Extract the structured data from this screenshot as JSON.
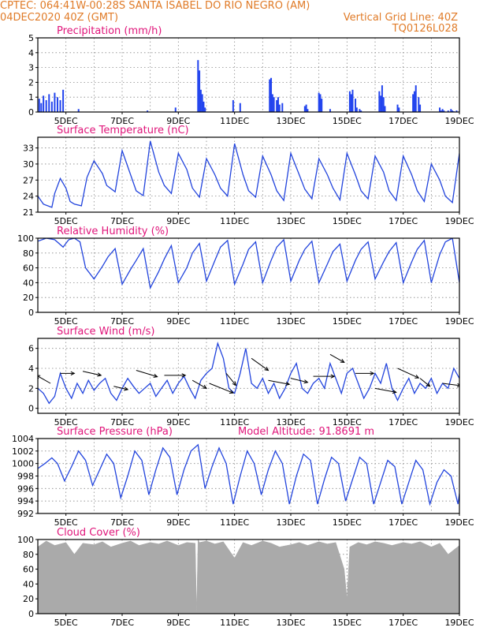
{
  "header": {
    "line1_left": "CPTEC:   064:41W-00:28S   SANTA ISABEL DO RIO NEGRO (AM)",
    "line2_left": "04DEC2020 40Z (GMT)",
    "line2_right": "Vertical Grid Line: 40Z",
    "line3_right": "TQ0126L028"
  },
  "colors": {
    "header": "#e07b28",
    "title": "#e0157a",
    "series": "#2244dd",
    "bars": "#2244ee",
    "cloud": "#aaaaaa",
    "grid": "#888888"
  },
  "chart_data": [
    {
      "type": "bar",
      "title": "Precipitation (mm/h)",
      "x_ticks": [
        "5DEC",
        "7DEC",
        "9DEC",
        "11DEC",
        "13DEC",
        "15DEC",
        "17DEC",
        "19DEC"
      ],
      "xlim": [
        0,
        15
      ],
      "ylim": [
        0,
        5
      ],
      "y_ticks": [
        "0",
        "1",
        "2",
        "3",
        "4",
        "5"
      ],
      "grid": true,
      "x": [
        0.05,
        0.12,
        0.2,
        0.3,
        0.4,
        0.5,
        0.6,
        0.7,
        0.8,
        0.9,
        1.45,
        3.9,
        4.9,
        5.7,
        5.75,
        5.8,
        5.85,
        5.9,
        5.95,
        6.95,
        7.2,
        8.25,
        8.3,
        8.35,
        8.4,
        8.5,
        8.55,
        8.6,
        8.7,
        9.5,
        9.55,
        9.6,
        10.0,
        10.05,
        10.1,
        10.4,
        11.1,
        11.15,
        11.2,
        11.3,
        11.35,
        11.45,
        11.5,
        12.15,
        12.2,
        12.25,
        12.3,
        12.35,
        12.8,
        12.85,
        13.35,
        13.4,
        13.45,
        13.55,
        13.6,
        14.3,
        14.35,
        14.4,
        14.45,
        14.6,
        14.7,
        14.75,
        14.8,
        14.9
      ],
      "values": [
        0.9,
        0.6,
        1.1,
        0.8,
        1.2,
        0.7,
        1.3,
        1.0,
        0.8,
        1.5,
        0.2,
        0.1,
        0.3,
        3.5,
        2.8,
        1.5,
        1.2,
        0.7,
        0.3,
        0.8,
        0.6,
        2.2,
        2.3,
        1.2,
        1.0,
        0.8,
        1.0,
        0.5,
        0.6,
        0.4,
        0.5,
        0.2,
        1.3,
        1.2,
        0.9,
        0.2,
        1.4,
        1.2,
        1.5,
        0.9,
        0.3,
        0.2,
        0.1,
        1.4,
        1.1,
        1.8,
        1.0,
        0.4,
        0.5,
        0.3,
        1.2,
        1.4,
        1.8,
        1.0,
        0.5,
        0.3,
        0.1,
        0.2,
        0.1,
        0.1,
        0.2,
        0.1,
        0.05,
        0.1
      ]
    },
    {
      "type": "line",
      "title": "Surface Temperature (nC)",
      "x_ticks": [
        "5DEC",
        "7DEC",
        "9DEC",
        "11DEC",
        "13DEC",
        "15DEC",
        "17DEC",
        "19DEC"
      ],
      "xlim": [
        0,
        15
      ],
      "ylim": [
        21,
        35
      ],
      "y_ticks": [
        "21",
        "24",
        "27",
        "30",
        "33"
      ],
      "grid": true,
      "x": [
        0.0,
        0.2,
        0.5,
        0.6,
        0.8,
        1.0,
        1.15,
        1.3,
        1.55,
        1.75,
        2.0,
        2.3,
        2.45,
        2.75,
        3.0,
        3.3,
        3.5,
        3.75,
        4.0,
        4.3,
        4.5,
        4.75,
        5.0,
        5.3,
        5.5,
        5.75,
        6.0,
        6.3,
        6.5,
        6.75,
        7.0,
        7.3,
        7.5,
        7.75,
        8.0,
        8.3,
        8.5,
        8.75,
        9.0,
        9.3,
        9.5,
        9.75,
        10.0,
        10.3,
        10.5,
        10.75,
        11.0,
        11.3,
        11.5,
        11.75,
        12.0,
        12.3,
        12.5,
        12.75,
        13.0,
        13.3,
        13.5,
        13.75,
        14.0,
        14.3,
        14.5,
        14.75,
        15.0
      ],
      "values": [
        24.0,
        22.5,
        21.9,
        24.5,
        27.3,
        25.5,
        23.0,
        22.5,
        22.2,
        27.5,
        30.6,
        28.2,
        26.0,
        24.8,
        32.5,
        28.0,
        25.0,
        24.1,
        34.3,
        28.5,
        26.0,
        24.5,
        32.0,
        29.0,
        25.5,
        23.8,
        31.0,
        28.0,
        25.5,
        24.0,
        33.8,
        28.0,
        25.0,
        23.8,
        31.5,
        28.0,
        25.0,
        23.2,
        32.0,
        28.0,
        25.3,
        23.5,
        31.0,
        28.0,
        25.5,
        23.3,
        32.0,
        28.0,
        25.0,
        23.5,
        31.5,
        28.5,
        25.0,
        23.2,
        31.5,
        28.0,
        25.0,
        23.0,
        30.0,
        27.0,
        24.0,
        22.8,
        32.0
      ]
    },
    {
      "type": "line",
      "title": "Relative Humidity (%)",
      "x_ticks": [
        "5DEC",
        "7DEC",
        "9DEC",
        "11DEC",
        "13DEC",
        "15DEC",
        "17DEC",
        "19DEC"
      ],
      "xlim": [
        0,
        15
      ],
      "ylim": [
        0,
        100
      ],
      "y_ticks": [
        "0",
        "20",
        "40",
        "60",
        "80",
        "100"
      ],
      "grid": true,
      "x": [
        0.0,
        0.3,
        0.6,
        0.9,
        1.1,
        1.3,
        1.5,
        1.7,
        2.0,
        2.3,
        2.5,
        2.75,
        3.0,
        3.3,
        3.5,
        3.75,
        4.0,
        4.3,
        4.5,
        4.75,
        5.0,
        5.3,
        5.5,
        5.75,
        6.0,
        6.3,
        6.5,
        6.75,
        7.0,
        7.3,
        7.5,
        7.75,
        8.0,
        8.3,
        8.5,
        8.75,
        9.0,
        9.3,
        9.5,
        9.75,
        10.0,
        10.3,
        10.5,
        10.75,
        11.0,
        11.3,
        11.5,
        11.75,
        12.0,
        12.3,
        12.5,
        12.75,
        13.0,
        13.3,
        13.5,
        13.75,
        14.0,
        14.3,
        14.5,
        14.75,
        15.0
      ],
      "values": [
        96,
        100,
        98,
        88,
        98,
        100,
        95,
        60,
        45,
        62,
        75,
        86,
        38,
        58,
        70,
        86,
        33,
        55,
        72,
        90,
        40,
        60,
        80,
        93,
        42,
        70,
        88,
        97,
        38,
        65,
        85,
        95,
        40,
        70,
        88,
        98,
        42,
        70,
        85,
        96,
        40,
        65,
        82,
        92,
        42,
        70,
        85,
        95,
        45,
        68,
        82,
        94,
        40,
        68,
        85,
        97,
        40,
        78,
        95,
        100,
        40
      ]
    },
    {
      "type": "line",
      "title": "Surface Wind (m/s)",
      "x_ticks": [
        "5DEC",
        "7DEC",
        "9DEC",
        "11DEC",
        "13DEC",
        "15DEC",
        "17DEC",
        "19DEC"
      ],
      "xlim": [
        0,
        15
      ],
      "ylim": [
        -0.5,
        7
      ],
      "y_ticks": [
        "0",
        "2",
        "4",
        "6"
      ],
      "grid": true,
      "x": [
        0.0,
        0.2,
        0.4,
        0.6,
        0.8,
        1.0,
        1.2,
        1.4,
        1.6,
        1.8,
        2.0,
        2.2,
        2.4,
        2.6,
        2.8,
        3.0,
        3.2,
        3.4,
        3.6,
        3.8,
        4.0,
        4.2,
        4.4,
        4.6,
        4.8,
        5.0,
        5.2,
        5.4,
        5.6,
        5.8,
        6.0,
        6.2,
        6.4,
        6.6,
        6.8,
        7.0,
        7.2,
        7.4,
        7.6,
        7.8,
        8.0,
        8.2,
        8.4,
        8.6,
        8.8,
        9.0,
        9.2,
        9.4,
        9.6,
        9.8,
        10.0,
        10.2,
        10.4,
        10.6,
        10.8,
        11.0,
        11.2,
        11.4,
        11.6,
        11.8,
        12.0,
        12.2,
        12.4,
        12.6,
        12.8,
        13.0,
        13.2,
        13.4,
        13.6,
        13.8,
        14.0,
        14.2,
        14.4,
        14.6,
        14.8,
        15.0
      ],
      "values": [
        2.0,
        1.5,
        0.5,
        1.2,
        3.5,
        2.0,
        1.0,
        2.5,
        1.5,
        2.8,
        1.8,
        2.5,
        3.0,
        1.5,
        0.8,
        2.0,
        3.0,
        2.2,
        1.5,
        2.0,
        2.5,
        1.2,
        2.0,
        2.8,
        1.5,
        2.5,
        3.2,
        2.0,
        1.0,
        2.8,
        3.5,
        4.0,
        6.5,
        5.0,
        2.0,
        1.5,
        3.5,
        6.0,
        2.5,
        2.0,
        3.0,
        1.5,
        2.5,
        1.0,
        2.0,
        3.5,
        4.5,
        2.0,
        1.5,
        2.5,
        3.0,
        2.0,
        4.5,
        3.0,
        1.5,
        3.5,
        4.0,
        2.5,
        1.0,
        2.0,
        3.5,
        2.5,
        4.5,
        2.0,
        0.8,
        2.0,
        3.0,
        1.5,
        2.5,
        2.0,
        3.0,
        1.5,
        2.5,
        2.0,
        4.0,
        3.0
      ],
      "wind_vectors": [
        [
          0.45,
          2.5,
          -1,
          1
        ],
        [
          0.8,
          3.5,
          1,
          0
        ],
        [
          1.6,
          3.7,
          1.3,
          -0.5
        ],
        [
          2.7,
          2.2,
          1,
          -0.4
        ],
        [
          3.5,
          3.8,
          1.5,
          -0.8
        ],
        [
          4.5,
          3.3,
          1.5,
          0
        ],
        [
          5.5,
          2.8,
          1,
          -1
        ],
        [
          6.1,
          2.5,
          1.7,
          -1.2
        ],
        [
          6.7,
          3.5,
          0.7,
          -1.5
        ],
        [
          7.6,
          5.0,
          1.2,
          -1.5
        ],
        [
          8.2,
          2.8,
          1.5,
          -0.5
        ],
        [
          9.0,
          3.0,
          1.2,
          -0.5
        ],
        [
          9.8,
          3.2,
          1.5,
          0
        ],
        [
          10.4,
          5.4,
          1,
          -1
        ],
        [
          11.3,
          3.5,
          1.3,
          0
        ],
        [
          12.0,
          2.0,
          1.5,
          -0.5
        ],
        [
          12.8,
          4.0,
          1.5,
          -1.2
        ],
        [
          13.6,
          3.0,
          0.7,
          -1
        ],
        [
          14.4,
          2.5,
          1.3,
          -0.3
        ]
      ]
    },
    {
      "type": "line",
      "title": "Surface Pressure (hPa)",
      "subtitle": "Model Altitude: 91.8691 m",
      "x_ticks": [
        "5DEC",
        "7DEC",
        "9DEC",
        "11DEC",
        "13DEC",
        "15DEC",
        "17DEC",
        "19DEC"
      ],
      "xlim": [
        0,
        15
      ],
      "ylim": [
        992,
        1004
      ],
      "y_ticks": [
        "992",
        "994",
        "996",
        "998",
        "1000",
        "1002",
        "1004"
      ],
      "grid": true,
      "x": [
        0.0,
        0.25,
        0.5,
        0.7,
        0.95,
        1.2,
        1.45,
        1.7,
        1.95,
        2.2,
        2.45,
        2.7,
        2.95,
        3.2,
        3.45,
        3.7,
        3.95,
        4.2,
        4.45,
        4.7,
        4.95,
        5.2,
        5.45,
        5.7,
        5.95,
        6.2,
        6.45,
        6.7,
        6.95,
        7.2,
        7.45,
        7.7,
        7.95,
        8.2,
        8.45,
        8.7,
        8.95,
        9.2,
        9.45,
        9.7,
        9.95,
        10.2,
        10.45,
        10.7,
        10.95,
        11.2,
        11.45,
        11.7,
        11.95,
        12.2,
        12.45,
        12.7,
        12.95,
        13.2,
        13.45,
        13.7,
        13.95,
        14.2,
        14.45,
        14.7,
        14.95,
        15.0
      ],
      "values": [
        999.2,
        1000.0,
        1000.9,
        1000.0,
        997.2,
        999.5,
        1002.0,
        1000.5,
        996.5,
        999.0,
        1001.5,
        1000.0,
        994.5,
        998.0,
        1002.0,
        1000.5,
        995.0,
        999.0,
        1002.5,
        1001.0,
        995.0,
        999.0,
        1002.0,
        1003.0,
        996.0,
        999.5,
        1002.5,
        1000.0,
        993.5,
        998.0,
        1002.0,
        1000.0,
        995.0,
        999.0,
        1002.0,
        1000.0,
        993.5,
        998.0,
        1001.5,
        1000.5,
        993.5,
        997.5,
        1001.0,
        1000.0,
        994.0,
        997.5,
        1001.0,
        1000.0,
        993.5,
        997.0,
        1000.5,
        999.5,
        993.5,
        997.0,
        1000.5,
        999.0,
        993.5,
        997.0,
        999.0,
        998.0,
        993.5,
        995.2
      ]
    },
    {
      "type": "area",
      "title": "Cloud Cover (%)",
      "x_ticks": [
        "5DEC",
        "7DEC",
        "9DEC",
        "11DEC",
        "13DEC",
        "15DEC",
        "17DEC",
        "19DEC"
      ],
      "xlim": [
        0,
        15
      ],
      "ylim": [
        0,
        100
      ],
      "y_ticks": [
        "0",
        "20",
        "40",
        "60",
        "80",
        "100"
      ],
      "grid": true,
      "x": [
        0.0,
        0.3,
        0.6,
        1.0,
        1.3,
        1.6,
        2.0,
        2.3,
        2.6,
        3.0,
        3.3,
        3.6,
        4.0,
        4.3,
        4.6,
        5.0,
        5.3,
        5.6,
        5.65,
        5.7,
        5.75,
        6.0,
        6.3,
        6.6,
        7.0,
        7.3,
        7.6,
        8.0,
        8.3,
        8.6,
        9.0,
        9.3,
        9.6,
        10.0,
        10.3,
        10.6,
        10.9,
        11.0,
        11.1,
        11.4,
        11.7,
        12.0,
        12.3,
        12.6,
        13.0,
        13.3,
        13.6,
        14.0,
        14.3,
        14.6,
        15.0
      ],
      "values": [
        90,
        98,
        92,
        96,
        80,
        95,
        93,
        97,
        90,
        95,
        98,
        92,
        96,
        94,
        98,
        92,
        96,
        95,
        0,
        100,
        96,
        98,
        94,
        97,
        75,
        96,
        92,
        98,
        95,
        90,
        93,
        96,
        92,
        97,
        94,
        96,
        60,
        20,
        90,
        96,
        93,
        97,
        95,
        92,
        96,
        94,
        97,
        90,
        95,
        80,
        92
      ]
    }
  ]
}
